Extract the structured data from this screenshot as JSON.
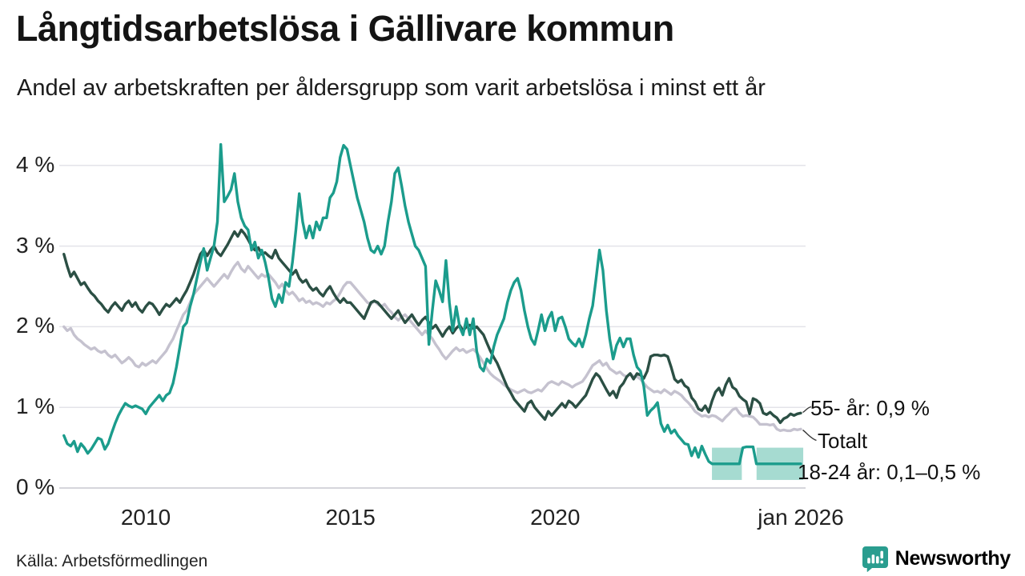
{
  "title": "Långtidsarbetslösa i Gällivare kommun",
  "subtitle": "Andel av arbetskraften per åldersgrupp som varit arbetslösa i minst ett år",
  "source": "Källa: Arbetsförmedlingen",
  "brand": "Newsworthy",
  "colors": {
    "youth_line": "#1b9c8c",
    "senior_line": "#2b4f44",
    "total_line": "#c5c2cf",
    "band_fill": "#a6dbd1",
    "gridline": "#e3e3e9",
    "zero_line": "#d5d5db",
    "connector": "#3a3a3a",
    "brand_teal": "#2a9d8f",
    "text": "#141414"
  },
  "chart_data": {
    "type": "line",
    "x_start_year": 2008.0,
    "x_step_months": 1,
    "x_axis": {
      "ticks": [
        {
          "label": "2010",
          "year": 2010.0
        },
        {
          "label": "2015",
          "year": 2015.0
        },
        {
          "label": "2020",
          "year": 2020.0
        },
        {
          "label": "jan 2026",
          "year": 2026.0
        }
      ],
      "range": [
        2007.95,
        2026.1
      ]
    },
    "y_axis": {
      "ticks": [
        {
          "label": "0 %",
          "value": 0
        },
        {
          "label": "1 %",
          "value": 1
        },
        {
          "label": "2 %",
          "value": 2
        },
        {
          "label": "3 %",
          "value": 3
        },
        {
          "label": "4 %",
          "value": 4
        }
      ],
      "range": [
        0,
        4.35
      ],
      "grid": true
    },
    "legend_position": "end-of-line-labels",
    "series": [
      {
        "name": "Totalt",
        "color": "#c5c2cf",
        "values": [
          2.0,
          1.95,
          1.98,
          1.9,
          1.85,
          1.82,
          1.78,
          1.75,
          1.72,
          1.74,
          1.7,
          1.68,
          1.7,
          1.65,
          1.62,
          1.65,
          1.6,
          1.55,
          1.58,
          1.62,
          1.58,
          1.52,
          1.5,
          1.55,
          1.52,
          1.55,
          1.58,
          1.55,
          1.6,
          1.65,
          1.7,
          1.78,
          1.85,
          1.95,
          2.05,
          2.15,
          2.2,
          2.3,
          2.4,
          2.45,
          2.5,
          2.55,
          2.6,
          2.55,
          2.5,
          2.55,
          2.6,
          2.65,
          2.6,
          2.68,
          2.75,
          2.8,
          2.72,
          2.68,
          2.75,
          2.7,
          2.65,
          2.6,
          2.65,
          2.62,
          2.65,
          2.6,
          2.55,
          2.48,
          2.53,
          2.45,
          2.4,
          2.43,
          2.38,
          2.32,
          2.35,
          2.3,
          2.32,
          2.28,
          2.3,
          2.28,
          2.25,
          2.3,
          2.28,
          2.32,
          2.35,
          2.42,
          2.5,
          2.55,
          2.55,
          2.5,
          2.45,
          2.4,
          2.35,
          2.3,
          2.28,
          2.32,
          2.28,
          2.25,
          2.28,
          2.22,
          2.18,
          2.12,
          2.08,
          2.12,
          2.15,
          2.1,
          2.05,
          2.0,
          1.95,
          1.9,
          1.95,
          1.9,
          1.85,
          1.78,
          1.72,
          1.65,
          1.6,
          1.65,
          1.7,
          1.74,
          1.7,
          1.72,
          1.68,
          1.7,
          1.72,
          1.68,
          1.62,
          1.55,
          1.48,
          1.42,
          1.38,
          1.35,
          1.32,
          1.28,
          1.25,
          1.22,
          1.2,
          1.18,
          1.2,
          1.22,
          1.19,
          1.18,
          1.2,
          1.22,
          1.2,
          1.25,
          1.3,
          1.32,
          1.3,
          1.28,
          1.32,
          1.3,
          1.28,
          1.25,
          1.28,
          1.3,
          1.32,
          1.38,
          1.45,
          1.52,
          1.55,
          1.58,
          1.52,
          1.55,
          1.48,
          1.45,
          1.42,
          1.44,
          1.4,
          1.38,
          1.42,
          1.38,
          1.38,
          1.35,
          1.3,
          1.25,
          1.22,
          1.19,
          1.2,
          1.18,
          1.22,
          1.19,
          1.16,
          1.2,
          1.18,
          1.15,
          1.1,
          1.06,
          1.01,
          0.95,
          0.92,
          0.89,
          0.9,
          0.88,
          0.9,
          0.89,
          0.86,
          0.83,
          0.88,
          0.92,
          0.97,
          0.99,
          0.93,
          0.89,
          0.9,
          0.89,
          0.88,
          0.84,
          0.79,
          0.79,
          0.79,
          0.78,
          0.79,
          0.73,
          0.71,
          0.72,
          0.71,
          0.71,
          0.73,
          0.72,
          0.73
        ]
      },
      {
        "name": "55- år",
        "color": "#2b4f44",
        "values": [
          2.9,
          2.75,
          2.62,
          2.68,
          2.6,
          2.52,
          2.55,
          2.48,
          2.42,
          2.38,
          2.32,
          2.28,
          2.22,
          2.18,
          2.25,
          2.3,
          2.25,
          2.2,
          2.28,
          2.32,
          2.25,
          2.3,
          2.22,
          2.18,
          2.25,
          2.3,
          2.28,
          2.22,
          2.15,
          2.22,
          2.28,
          2.25,
          2.3,
          2.35,
          2.3,
          2.38,
          2.45,
          2.55,
          2.65,
          2.78,
          2.9,
          2.95,
          2.88,
          2.95,
          3.0,
          2.92,
          2.88,
          2.95,
          3.02,
          3.1,
          3.18,
          3.12,
          3.2,
          3.15,
          3.08,
          3.0,
          2.95,
          2.98,
          2.9,
          2.92,
          2.88,
          2.85,
          2.95,
          2.85,
          2.8,
          2.75,
          2.7,
          2.65,
          2.7,
          2.6,
          2.55,
          2.58,
          2.5,
          2.45,
          2.48,
          2.42,
          2.38,
          2.45,
          2.5,
          2.42,
          2.35,
          2.3,
          2.35,
          2.3,
          2.3,
          2.25,
          2.2,
          2.15,
          2.1,
          2.2,
          2.3,
          2.32,
          2.3,
          2.25,
          2.2,
          2.15,
          2.1,
          2.15,
          2.2,
          2.12,
          2.05,
          2.1,
          2.15,
          2.08,
          2.02,
          2.08,
          2.12,
          2.05,
          1.98,
          2.02,
          1.95,
          1.88,
          1.95,
          2.0,
          1.92,
          1.98,
          2.02,
          1.95,
          2.0,
          2.02,
          1.98,
          2.0,
          1.95,
          1.9,
          1.8,
          1.7,
          1.62,
          1.55,
          1.45,
          1.35,
          1.25,
          1.18,
          1.1,
          1.05,
          1.0,
          0.95,
          1.05,
          1.08,
          1.0,
          0.95,
          0.9,
          0.85,
          0.95,
          0.9,
          0.95,
          1.0,
          1.05,
          1.0,
          1.08,
          1.05,
          1.0,
          1.05,
          1.1,
          1.15,
          1.25,
          1.35,
          1.42,
          1.38,
          1.3,
          1.22,
          1.15,
          1.2,
          1.12,
          1.25,
          1.3,
          1.38,
          1.42,
          1.35,
          1.42,
          1.4,
          1.36,
          1.45,
          1.63,
          1.65,
          1.65,
          1.64,
          1.65,
          1.63,
          1.5,
          1.35,
          1.31,
          1.34,
          1.27,
          1.24,
          1.12,
          1.07,
          0.98,
          0.96,
          1.02,
          0.94,
          1.08,
          1.19,
          1.24,
          1.15,
          1.28,
          1.36,
          1.25,
          1.22,
          1.14,
          1.1,
          1.07,
          0.92,
          1.11,
          1.09,
          1.05,
          0.93,
          0.91,
          0.94,
          0.9,
          0.87,
          0.81,
          0.86,
          0.88,
          0.92,
          0.9,
          0.92,
          0.93
        ]
      },
      {
        "name": "18-24 år",
        "color": "#1b9c8c",
        "values": [
          0.65,
          0.55,
          0.52,
          0.58,
          0.45,
          0.55,
          0.5,
          0.43,
          0.48,
          0.55,
          0.62,
          0.6,
          0.48,
          0.55,
          0.68,
          0.8,
          0.9,
          0.98,
          1.05,
          1.02,
          1.0,
          1.02,
          1.0,
          0.98,
          0.92,
          1.0,
          1.05,
          1.1,
          1.15,
          1.08,
          1.15,
          1.18,
          1.3,
          1.5,
          1.75,
          2.0,
          2.05,
          2.25,
          2.4,
          2.6,
          2.8,
          2.97,
          2.7,
          2.85,
          3.0,
          3.3,
          4.26,
          3.55,
          3.62,
          3.7,
          3.9,
          3.55,
          3.35,
          3.25,
          3.2,
          2.95,
          3.05,
          2.85,
          2.95,
          2.8,
          2.6,
          2.35,
          2.25,
          2.4,
          2.3,
          2.55,
          2.5,
          2.8,
          3.2,
          3.65,
          3.3,
          3.1,
          3.25,
          3.1,
          3.3,
          3.2,
          3.35,
          3.35,
          3.6,
          3.66,
          3.8,
          4.1,
          4.25,
          4.2,
          4.0,
          3.8,
          3.6,
          3.45,
          3.3,
          3.1,
          2.95,
          2.92,
          3.0,
          2.9,
          3.0,
          3.3,
          3.55,
          3.9,
          3.97,
          3.75,
          3.5,
          3.3,
          3.15,
          3.0,
          2.95,
          2.85,
          2.75,
          1.78,
          2.2,
          2.57,
          2.45,
          2.31,
          2.82,
          2.3,
          1.95,
          2.25,
          2.0,
          1.9,
          2.1,
          1.9,
          2.1,
          1.7,
          1.5,
          1.45,
          1.6,
          1.55,
          1.75,
          1.9,
          2.0,
          2.1,
          2.3,
          2.45,
          2.55,
          2.6,
          2.45,
          2.2,
          2.0,
          1.85,
          1.78,
          1.95,
          2.15,
          1.95,
          2.1,
          2.18,
          1.95,
          2.1,
          2.12,
          2.0,
          1.85,
          1.8,
          1.76,
          1.85,
          1.75,
          1.9,
          2.1,
          2.26,
          2.6,
          2.95,
          2.7,
          2.2,
          1.85,
          1.6,
          1.77,
          1.86,
          1.75,
          1.85,
          1.85,
          1.65,
          1.5,
          1.45,
          1.26,
          0.9,
          0.96,
          1.0,
          1.06,
          0.8,
          0.7,
          0.78,
          0.68,
          0.72,
          0.65,
          0.6,
          0.55,
          0.54,
          0.4,
          0.5,
          0.38,
          0.52,
          0.42,
          0.33,
          0.3,
          0.3,
          0.3,
          0.3,
          0.3,
          0.3,
          0.3,
          0.3,
          0.3,
          0.5,
          0.51,
          0.51,
          0.51,
          0.3,
          0.3,
          0.3,
          0.3,
          0.3,
          0.3,
          0.3,
          0.3,
          0.3,
          0.3,
          0.3,
          0.3,
          0.3,
          0.3
        ]
      }
    ],
    "band": {
      "series": "18-24 år",
      "low": 0.1,
      "high": 0.5,
      "segments": [
        [
          2023.83,
          2024.56
        ],
        [
          2024.92,
          2026.06
        ]
      ],
      "color": "#a6dbd1"
    },
    "end_labels": [
      {
        "text": "55- år: 0,9 %",
        "series": "55- år"
      },
      {
        "text": "Totalt",
        "series": "Totalt"
      },
      {
        "text": "18-24 år: 0,1–0,5 %",
        "series": "18-24 år"
      }
    ]
  }
}
